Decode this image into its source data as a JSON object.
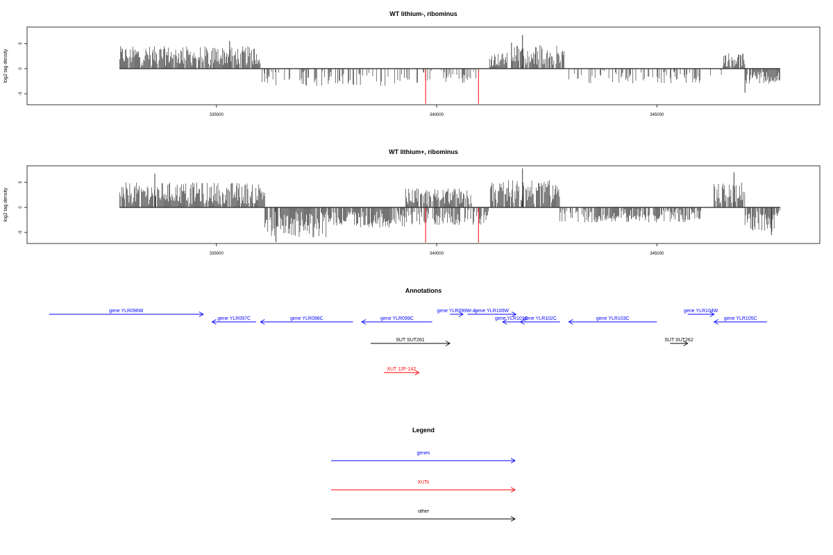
{
  "chart_data": [
    {
      "type": "bar",
      "title": "WT lithium-, ribominus",
      "ylabel": "log2 tag density",
      "xlim": [
        330700,
        348700
      ],
      "ylim": [
        -7.2,
        8.3
      ],
      "xticks": [
        335000,
        340000,
        345000
      ],
      "xtick_labels": [
        "335000",
        "340000",
        "345000"
      ],
      "yticks": [
        5,
        0,
        -5
      ],
      "ytick_labels": [
        "5",
        "0",
        "-5"
      ],
      "grid": false,
      "highlight_color": "#ff0000",
      "baseline": {
        "start": 332800,
        "end": 347800
      },
      "profile": [
        {
          "start": 332800,
          "end": 336000,
          "strand": "+",
          "max": 4.5
        },
        {
          "start": 336000,
          "end": 339000,
          "strand": "-",
          "max": 3.5,
          "density": 0.35
        },
        {
          "start": 339000,
          "end": 341000,
          "strand": "-",
          "max": 3.0,
          "density": 0.3
        },
        {
          "start": 341200,
          "end": 341600,
          "strand": "+",
          "max": 3.2
        },
        {
          "start": 341700,
          "end": 342900,
          "strand": "+",
          "max": 4.8
        },
        {
          "start": 343000,
          "end": 346000,
          "strand": "-",
          "max": 3.0,
          "density": 0.35
        },
        {
          "start": 346000,
          "end": 346500,
          "strand": "-",
          "max": 1.5,
          "density": 0.15
        },
        {
          "start": 346500,
          "end": 347000,
          "strand": "+",
          "max": 3.2
        },
        {
          "start": 347000,
          "end": 347800,
          "strand": "-",
          "max": 3.0
        }
      ],
      "peaks": [
        {
          "x": 335300,
          "y": 5.5
        },
        {
          "x": 341950,
          "y": 6.7
        },
        {
          "x": 341700,
          "y": 5.2
        },
        {
          "x": 347000,
          "y": -4.8
        }
      ],
      "highlights": [
        {
          "x": 339750,
          "y": -7.0
        },
        {
          "x": 340950,
          "y": -7.0
        }
      ]
    },
    {
      "type": "bar",
      "title": "WT lithium+, ribominus",
      "ylabel": "log2 tag density",
      "xlim": [
        330700,
        348700
      ],
      "ylim": [
        -7.2,
        8.3
      ],
      "xticks": [
        335000,
        340000,
        345000
      ],
      "xtick_labels": [
        "335000",
        "340000",
        "345000"
      ],
      "yticks": [
        5,
        0,
        -5
      ],
      "ytick_labels": [
        "5",
        "0",
        "-5"
      ],
      "grid": false,
      "highlight_color": "#ff0000",
      "baseline": {
        "start": 332800,
        "end": 347800
      },
      "profile": [
        {
          "start": 332800,
          "end": 336100,
          "strand": "+",
          "max": 5.0
        },
        {
          "start": 336100,
          "end": 337500,
          "strand": "-",
          "max": 6.0
        },
        {
          "start": 337500,
          "end": 339300,
          "strand": "-",
          "max": 4.0,
          "density": 0.8
        },
        {
          "start": 339300,
          "end": 340800,
          "strand": "+",
          "max": 3.8
        },
        {
          "start": 339300,
          "end": 341200,
          "strand": "-",
          "max": 3.5,
          "density": 0.6
        },
        {
          "start": 341200,
          "end": 342800,
          "strand": "+",
          "max": 5.5
        },
        {
          "start": 342800,
          "end": 346000,
          "strand": "-",
          "max": 3.0,
          "density": 0.7
        },
        {
          "start": 346300,
          "end": 347000,
          "strand": "+",
          "max": 5.0
        },
        {
          "start": 347000,
          "end": 347800,
          "strand": "-",
          "max": 5.0
        }
      ],
      "peaks": [
        {
          "x": 333600,
          "y": 6.7
        },
        {
          "x": 336350,
          "y": -6.9
        },
        {
          "x": 341950,
          "y": 7.8
        },
        {
          "x": 346750,
          "y": 7.0
        },
        {
          "x": 347600,
          "y": -5.5
        }
      ],
      "highlights": [
        {
          "x": 339750,
          "y": -7.0
        },
        {
          "x": 340950,
          "y": -7.0
        }
      ]
    }
  ],
  "annotations": {
    "title": "Annotations",
    "xlim": [
      330700,
      348700
    ],
    "features": [
      {
        "label": "gene YLR096W",
        "start": 331200,
        "end": 334700,
        "strand": "+",
        "row": 0,
        "color": "#0000ff"
      },
      {
        "label": "gene YLR097C",
        "start": 334900,
        "end": 335900,
        "strand": "-",
        "row": 1,
        "color": "#0000ff"
      },
      {
        "label": "gene YLR098C",
        "start": 336000,
        "end": 338100,
        "strand": "-",
        "row": 1,
        "color": "#0000ff"
      },
      {
        "label": "gene YLR099C",
        "start": 338300,
        "end": 339900,
        "strand": "-",
        "row": 1,
        "color": "#0000ff"
      },
      {
        "label": "gene YLR099W-A",
        "start": 340300,
        "end": 340600,
        "strand": "+",
        "row": 0,
        "color": "#0000ff"
      },
      {
        "label": "gene YLR100W",
        "start": 340700,
        "end": 341800,
        "strand": "+",
        "row": 0,
        "color": "#0000ff"
      },
      {
        "label": "gene YLR101C",
        "start": 341500,
        "end": 341900,
        "strand": "-",
        "row": 1,
        "color": "#0000ff"
      },
      {
        "label": "gene YLR102C",
        "start": 341900,
        "end": 342800,
        "strand": "-",
        "row": 1,
        "color": "#0000ff"
      },
      {
        "label": "gene YLR103C",
        "start": 343000,
        "end": 345000,
        "strand": "-",
        "row": 1,
        "color": "#0000ff"
      },
      {
        "label": "gene YLR104W",
        "start": 345700,
        "end": 346300,
        "strand": "+",
        "row": 0,
        "color": "#0000ff"
      },
      {
        "label": "gene YLR105C",
        "start": 346300,
        "end": 347500,
        "strand": "-",
        "row": 1,
        "color": "#0000ff"
      },
      {
        "label": "SUT SUT261",
        "start": 338500,
        "end": 340300,
        "strand": "+",
        "row": 2,
        "color": "#000000"
      },
      {
        "label": "SUT SUT262",
        "start": 345300,
        "end": 345700,
        "strand": "+",
        "row": 2,
        "color": "#000000"
      },
      {
        "label": "XUT 12F-142",
        "start": 338800,
        "end": 339600,
        "strand": "+",
        "row": 4,
        "color": "#ff0000"
      }
    ]
  },
  "legend": {
    "title": "Legend",
    "items": [
      {
        "label": "genes",
        "color": "#0000ff"
      },
      {
        "label": "XUTs",
        "color": "#ff0000"
      },
      {
        "label": "other",
        "color": "#000000"
      }
    ]
  }
}
